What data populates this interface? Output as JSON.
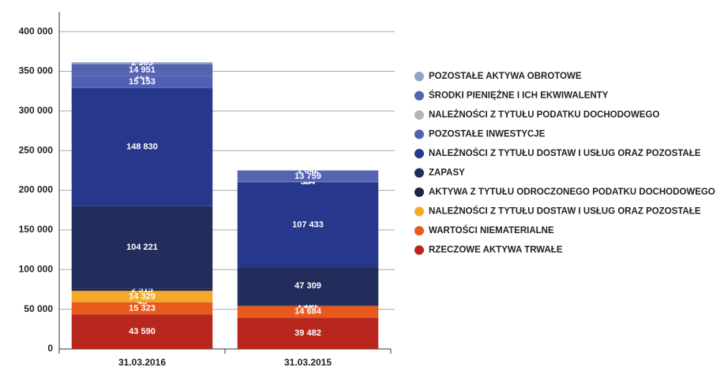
{
  "chart_data": {
    "type": "stacked_bar",
    "categories": [
      "31.03.2016",
      "31.03.2015"
    ],
    "ylim": [
      0,
      420000
    ],
    "yticks": [
      {
        "value": 0,
        "label": "0"
      },
      {
        "value": 50000,
        "label": "50 000"
      },
      {
        "value": 100000,
        "label": "100 000"
      },
      {
        "value": 150000,
        "label": "150 000"
      },
      {
        "value": 200000,
        "label": "200 000"
      },
      {
        "value": 250000,
        "label": "250 000"
      },
      {
        "value": 300000,
        "label": "300 000"
      },
      {
        "value": 350000,
        "label": "350 000"
      },
      {
        "value": 400000,
        "label": "400 000"
      }
    ],
    "grid": true,
    "legend": "right",
    "series": [
      {
        "name": "RZECZOWE AKTYWA TRWAŁE",
        "color": "#b8271e",
        "values": [
          43590,
          39482
        ],
        "value_labels": [
          "43 590",
          "39 482"
        ]
      },
      {
        "name": "WARTOŚCI NIEMATERIALNE",
        "color": "#e85a1b",
        "values": [
          15323,
          14684
        ],
        "value_labels": [
          "15 323",
          "14 684"
        ]
      },
      {
        "color": "#f07a2a",
        "values": [
          45,
          44
        ],
        "value_labels": [
          "45",
          "44"
        ]
      },
      {
        "name": "NALEŻNOŚCI Z TYTUŁU DOSTAW I USŁUG ORAZ POZOSTAŁE",
        "color": "#f3aa2b",
        "values": [
          14329,
          null
        ],
        "value_labels": [
          "14 329",
          null
        ]
      },
      {
        "name": "AKTYWA Z TYTUŁU ODROCZONEGO PODATKU DOCHODOWEGO",
        "color": "#1c2445",
        "values": [
          2515,
          1262
        ],
        "value_labels": [
          "2 515",
          "1 262"
        ]
      },
      {
        "name": "ZAPASY",
        "color": "#222d5c",
        "values": [
          104221,
          47309
        ],
        "value_labels": [
          "104 221",
          "47 309"
        ]
      },
      {
        "name": "NALEŻNOŚCI Z TYTUŁU DOSTAW I USŁUG ORAZ POZOSTAŁE",
        "color": "#27378c",
        "values": [
          148830,
          107433
        ],
        "value_labels": [
          "148 830",
          "107 433"
        ]
      },
      {
        "name": "POZOSTAŁE INWESTYCJE",
        "color": "#5061b3",
        "values": [
          15153,
          394
        ],
        "value_labels": [
          "15 153",
          "394"
        ]
      },
      {
        "name": "NALEŻNOŚCI Z TYTUŁU PODATKU DOCHODOWEGO",
        "color": "#b5b5b5",
        "values": [
          121,
          97
        ],
        "value_labels": [
          "121",
          "97"
        ]
      },
      {
        "name": "ŚRODKI PIENIĘŻNE I ICH EKWIWALENTY",
        "color": "#5563b0",
        "values": [
          14951,
          13759
        ],
        "value_labels": [
          "14 951",
          "13 759"
        ]
      },
      {
        "name": "POZOSTAŁE AKTYWA OBROTOWE",
        "color": "#8fa3c8",
        "values": [
          2305,
          1042
        ],
        "value_labels": [
          "2 305",
          "1 042"
        ]
      }
    ]
  }
}
